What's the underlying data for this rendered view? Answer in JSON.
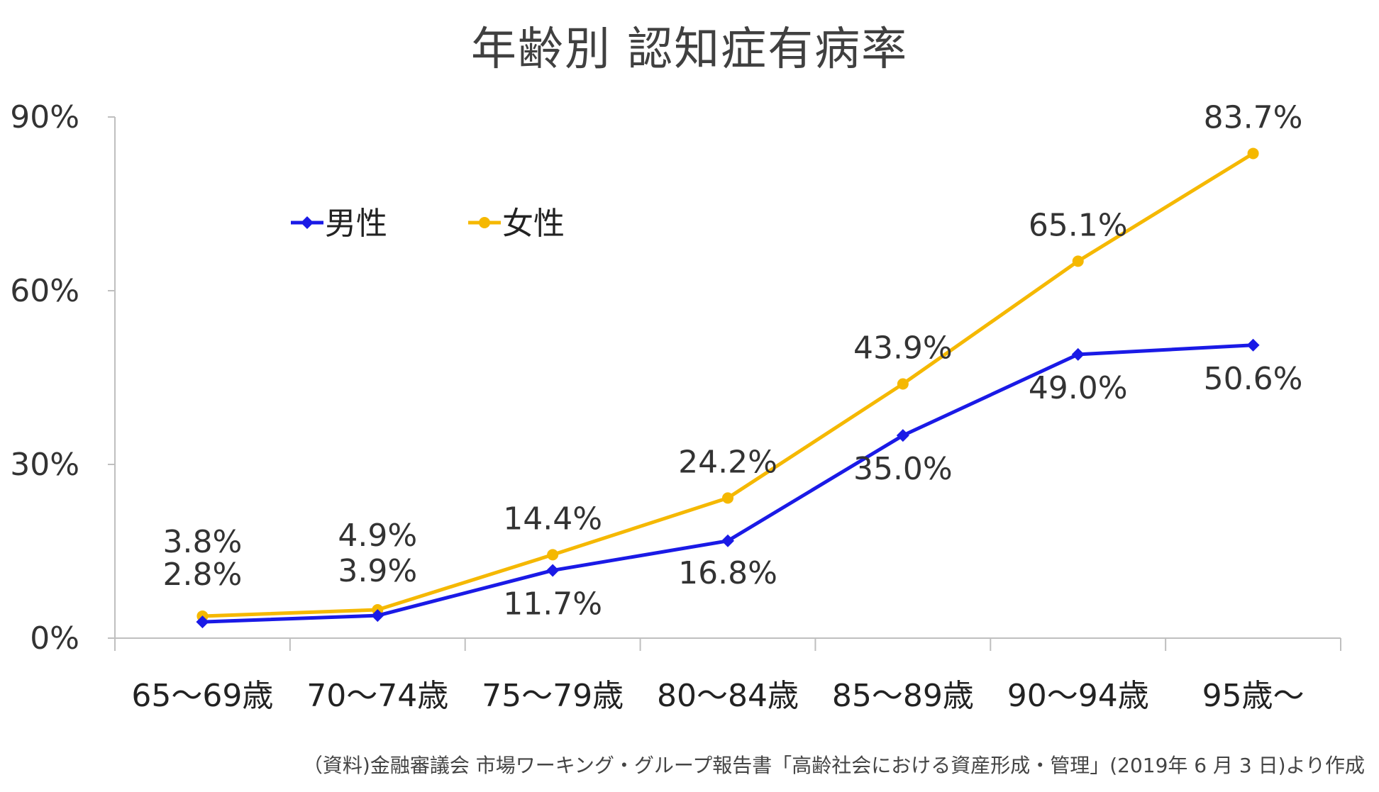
{
  "chart_data": {
    "type": "line",
    "title": "年齢別 認知症有病率",
    "categories": [
      "65～69歳",
      "70～74歳",
      "75～79歳",
      "80～84歳",
      "85～89歳",
      "90～94歳",
      "95歳～"
    ],
    "series": [
      {
        "name": "男性",
        "color": "#1a1ae6",
        "values": [
          2.8,
          3.9,
          11.7,
          16.8,
          35.0,
          49.0,
          50.6
        ],
        "labels": [
          "2.8%",
          "3.9%",
          "11.7%",
          "16.8%",
          "35.0%",
          "49.0%",
          "50.6%"
        ]
      },
      {
        "name": "女性",
        "color": "#f5b800",
        "values": [
          3.8,
          4.9,
          14.4,
          24.2,
          43.9,
          65.1,
          83.7
        ],
        "labels": [
          "3.8%",
          "4.9%",
          "14.4%",
          "24.2%",
          "43.9%",
          "65.1%",
          "83.7%"
        ]
      }
    ],
    "ylim": [
      0,
      90
    ],
    "yticks": [
      0,
      30,
      60,
      90
    ],
    "ytick_labels": [
      "0%",
      "30%",
      "60%",
      "90%"
    ],
    "legend_position": "top-left",
    "grid": false
  },
  "source": "（資料)金融審議会 市場ワーキング・グループ報告書「高齢社会における資産形成・管理」(2019年 6 月 3 日)より作成"
}
